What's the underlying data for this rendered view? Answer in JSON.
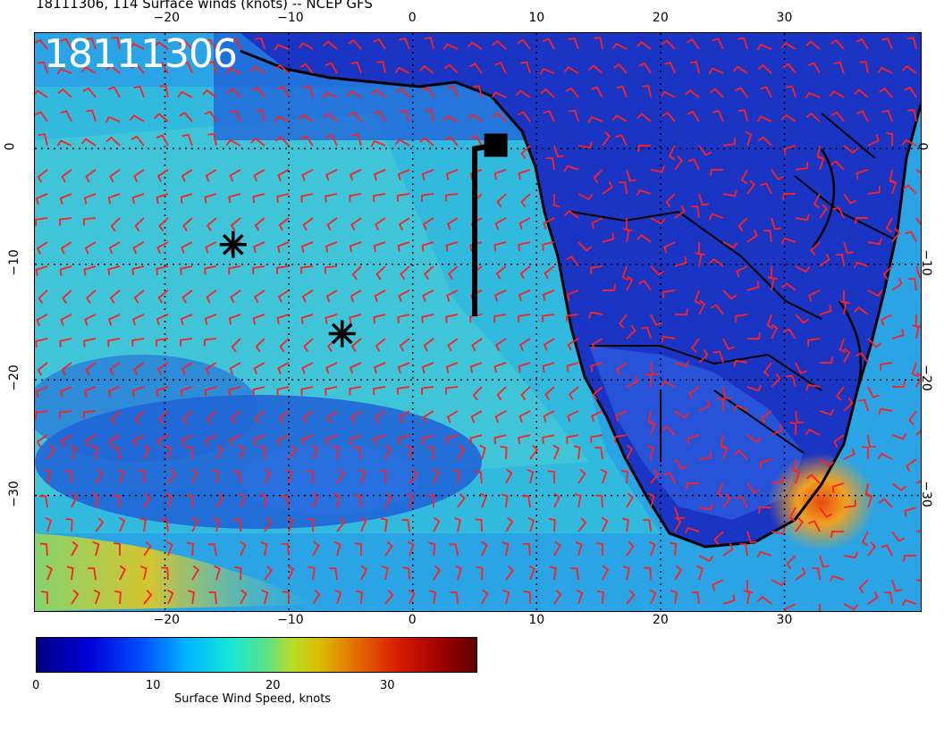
{
  "title": "18111306, 114 Surface winds (knots) -- NCEP GFS",
  "stamp": "18111306",
  "lon_ticks": [
    "−20",
    "−10",
    "0",
    "10",
    "20",
    "30"
  ],
  "lat_ticks": [
    "0",
    "−10",
    "−20",
    "−30"
  ],
  "colorbar": {
    "title": "Surface Wind Speed, knots",
    "labels": [
      "0",
      "10",
      "20",
      "30"
    ],
    "range": [
      0,
      37
    ]
  },
  "colors": {
    "barb": "#ff2020",
    "land": "#1530c8",
    "ocean": "#22a8e8",
    "coast": "#000000"
  },
  "markers": [
    {
      "type": "asterisk",
      "lon": -14.5,
      "lat": -8.3
    },
    {
      "type": "asterisk",
      "lon": -5.7,
      "lat": -16.0
    },
    {
      "type": "square",
      "lon": 6.7,
      "lat": 0.3
    }
  ],
  "track_line": {
    "lon": 5.0,
    "lat_from": 0.0,
    "lat_to": -14.5
  },
  "map_extent": {
    "lon": [
      -30.5,
      41
    ],
    "lat": [
      -40,
      10
    ]
  }
}
